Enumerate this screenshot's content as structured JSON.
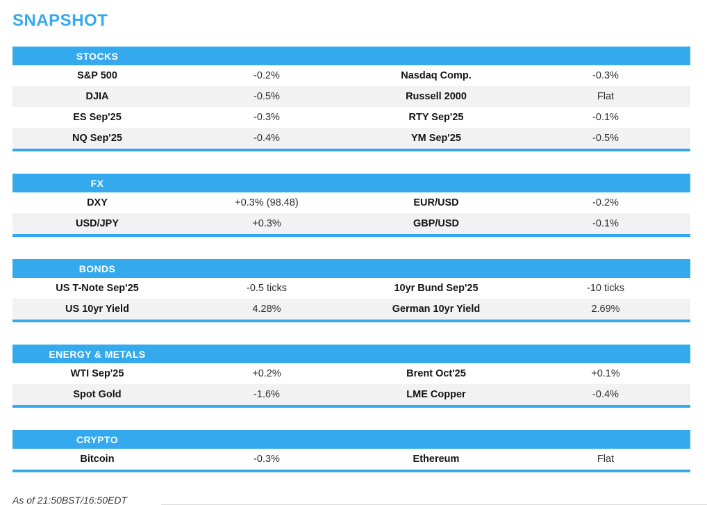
{
  "page": {
    "title": "SNAPSHOT",
    "footer": "As of 21:50BST/16:50EDT"
  },
  "colors": {
    "accent": "#34a9ee",
    "stripe": "#f2f2f2",
    "title_blue": "#34a9ee"
  },
  "sections": [
    {
      "name": "STOCKS",
      "rows": [
        [
          "S&P 500",
          "-0.2%",
          "Nasdaq Comp.",
          "-0.3%"
        ],
        [
          "DJIA",
          "-0.5%",
          "Russell 2000",
          "Flat"
        ],
        [
          "ES Sep'25",
          "-0.3%",
          "RTY Sep'25",
          "-0.1%"
        ],
        [
          "NQ Sep'25",
          "-0.4%",
          "YM Sep'25",
          "-0.5%"
        ]
      ]
    },
    {
      "name": "FX",
      "rows": [
        [
          "DXY",
          "+0.3% (98.48)",
          "EUR/USD",
          "-0.2%"
        ],
        [
          "USD/JPY",
          "+0.3%",
          "GBP/USD",
          "-0.1%"
        ]
      ]
    },
    {
      "name": "BONDS",
      "rows": [
        [
          "US T-Note Sep'25",
          "-0.5 ticks",
          "10yr Bund Sep'25",
          "-10 ticks"
        ],
        [
          "US 10yr Yield",
          "4.28%",
          "German 10yr Yield",
          "2.69%"
        ]
      ]
    },
    {
      "name": "ENERGY & METALS",
      "rows": [
        [
          "WTI Sep'25",
          "+0.2%",
          "Brent Oct'25",
          "+0.1%"
        ],
        [
          "Spot Gold",
          "-1.6%",
          "LME Copper",
          "-0.4%"
        ]
      ]
    },
    {
      "name": "CRYPTO",
      "rows": [
        [
          "Bitcoin",
          "-0.3%",
          "Ethereum",
          "Flat"
        ]
      ]
    }
  ]
}
